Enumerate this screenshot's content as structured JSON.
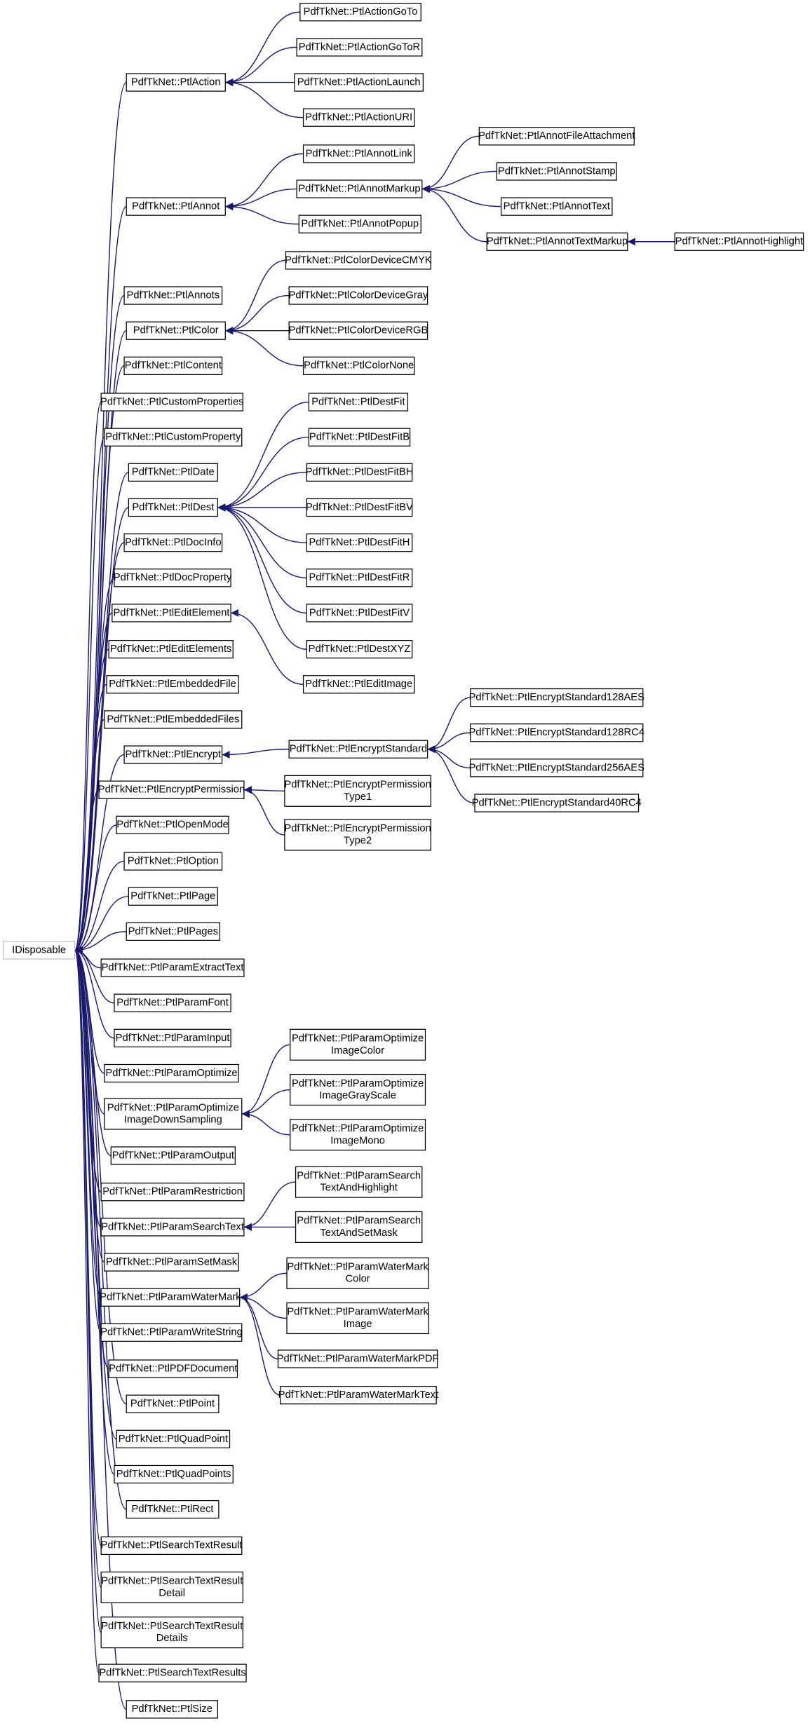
{
  "nodes": [
    {
      "label": [
        "IDisposable"
      ]
    },
    {
      "label": [
        "PdfTkNet::PtlAction"
      ]
    },
    {
      "label": [
        "PdfTkNet::PtlAnnot"
      ]
    },
    {
      "label": [
        "PdfTkNet::PtlAnnots"
      ]
    },
    {
      "label": [
        "PdfTkNet::PtlColor"
      ]
    },
    {
      "label": [
        "PdfTkNet::PtlContent"
      ]
    },
    {
      "label": [
        "PdfTkNet::PtlCustomProperties"
      ]
    },
    {
      "label": [
        "PdfTkNet::PtlCustomProperty"
      ]
    },
    {
      "label": [
        "PdfTkNet::PtlDate"
      ]
    },
    {
      "label": [
        "PdfTkNet::PtlDest"
      ]
    },
    {
      "label": [
        "PdfTkNet::PtlDocInfo"
      ]
    },
    {
      "label": [
        "PdfTkNet::PtlDocProperty"
      ]
    },
    {
      "label": [
        "PdfTkNet::PtlEditElement"
      ]
    },
    {
      "label": [
        "PdfTkNet::PtlEditElements"
      ]
    },
    {
      "label": [
        "PdfTkNet::PtlEmbeddedFile"
      ]
    },
    {
      "label": [
        "PdfTkNet::PtlEmbeddedFiles"
      ]
    },
    {
      "label": [
        "PdfTkNet::PtlEncrypt"
      ]
    },
    {
      "label": [
        "PdfTkNet::PtlEncryptPermission"
      ]
    },
    {
      "label": [
        "PdfTkNet::PtlOpenMode"
      ]
    },
    {
      "label": [
        "PdfTkNet::PtlOption"
      ]
    },
    {
      "label": [
        "PdfTkNet::PtlPage"
      ]
    },
    {
      "label": [
        "PdfTkNet::PtlPages"
      ]
    },
    {
      "label": [
        "PdfTkNet::PtlParamExtractText"
      ]
    },
    {
      "label": [
        "PdfTkNet::PtlParamFont"
      ]
    },
    {
      "label": [
        "PdfTkNet::PtlParamInput"
      ]
    },
    {
      "label": [
        "PdfTkNet::PtlParamOptimize"
      ]
    },
    {
      "label": [
        "PdfTkNet::PtlParamOptimize",
        "ImageDownSampling"
      ]
    },
    {
      "label": [
        "PdfTkNet::PtlParamOutput"
      ]
    },
    {
      "label": [
        "PdfTkNet::PtlParamRestriction"
      ]
    },
    {
      "label": [
        "PdfTkNet::PtlParamSearchText"
      ]
    },
    {
      "label": [
        "PdfTkNet::PtlParamSetMask"
      ]
    },
    {
      "label": [
        "PdfTkNet::PtlParamWaterMark"
      ]
    },
    {
      "label": [
        "PdfTkNet::PtlParamWriteString"
      ]
    },
    {
      "label": [
        "PdfTkNet::PtlPDFDocument"
      ]
    },
    {
      "label": [
        "PdfTkNet::PtlPoint"
      ]
    },
    {
      "label": [
        "PdfTkNet::PtlQuadPoint"
      ]
    },
    {
      "label": [
        "PdfTkNet::PtlQuadPoints"
      ]
    },
    {
      "label": [
        "PdfTkNet::PtlRect"
      ]
    },
    {
      "label": [
        "PdfTkNet::PtlSearchTextResult"
      ]
    },
    {
      "label": [
        "PdfTkNet::PtlSearchTextResult",
        "Detail"
      ]
    },
    {
      "label": [
        "PdfTkNet::PtlSearchTextResult",
        "Details"
      ]
    },
    {
      "label": [
        "PdfTkNet::PtlSearchTextResults"
      ]
    },
    {
      "label": [
        "PdfTkNet::PtlSize"
      ]
    },
    {
      "label": [
        "PdfTkNet::PtlActionGoTo"
      ]
    },
    {
      "label": [
        "PdfTkNet::PtlActionGoToR"
      ]
    },
    {
      "label": [
        "PdfTkNet::PtlActionLaunch"
      ]
    },
    {
      "label": [
        "PdfTkNet::PtlActionURI"
      ]
    },
    {
      "label": [
        "PdfTkNet::PtlAnnotLink"
      ]
    },
    {
      "label": [
        "PdfTkNet::PtlAnnotMarkup"
      ]
    },
    {
      "label": [
        "PdfTkNet::PtlAnnotPopup"
      ]
    },
    {
      "label": [
        "PdfTkNet::PtlColorDeviceCMYK"
      ]
    },
    {
      "label": [
        "PdfTkNet::PtlColorDeviceGray"
      ]
    },
    {
      "label": [
        "PdfTkNet::PtlColorDeviceRGB"
      ]
    },
    {
      "label": [
        "PdfTkNet::PtlColorNone"
      ]
    },
    {
      "label": [
        "PdfTkNet::PtlDestFit"
      ]
    },
    {
      "label": [
        "PdfTkNet::PtlDestFitB"
      ]
    },
    {
      "label": [
        "PdfTkNet::PtlDestFitBH"
      ]
    },
    {
      "label": [
        "PdfTkNet::PtlDestFitBV"
      ]
    },
    {
      "label": [
        "PdfTkNet::PtlDestFitH"
      ]
    },
    {
      "label": [
        "PdfTkNet::PtlDestFitR"
      ]
    },
    {
      "label": [
        "PdfTkNet::PtlDestFitV"
      ]
    },
    {
      "label": [
        "PdfTkNet::PtlDestXYZ"
      ]
    },
    {
      "label": [
        "PdfTkNet::PtlEditImage"
      ]
    },
    {
      "label": [
        "PdfTkNet::PtlEncryptStandard"
      ]
    },
    {
      "label": [
        "PdfTkNet::PtlEncryptPermission",
        "Type1"
      ]
    },
    {
      "label": [
        "PdfTkNet::PtlEncryptPermission",
        "Type2"
      ]
    },
    {
      "label": [
        "PdfTkNet::PtlParamOptimize",
        "ImageColor"
      ]
    },
    {
      "label": [
        "PdfTkNet::PtlParamOptimize",
        "ImageGrayScale"
      ]
    },
    {
      "label": [
        "PdfTkNet::PtlParamOptimize",
        "ImageMono"
      ]
    },
    {
      "label": [
        "PdfTkNet::PtlParamSearch",
        "TextAndHighlight"
      ]
    },
    {
      "label": [
        "PdfTkNet::PtlParamSearch",
        "TextAndSetMask"
      ]
    },
    {
      "label": [
        "PdfTkNet::PtlParamWaterMark",
        "Color"
      ]
    },
    {
      "label": [
        "PdfTkNet::PtlParamWaterMark",
        "Image"
      ]
    },
    {
      "label": [
        "PdfTkNet::PtlParamWaterMarkPDF"
      ]
    },
    {
      "label": [
        "PdfTkNet::PtlParamWaterMarkText"
      ]
    },
    {
      "label": [
        "PdfTkNet::PtlAnnotFileAttachment"
      ]
    },
    {
      "label": [
        "PdfTkNet::PtlAnnotStamp"
      ]
    },
    {
      "label": [
        "PdfTkNet::PtlAnnotText"
      ]
    },
    {
      "label": [
        "PdfTkNet::PtlAnnotTextMarkup"
      ]
    },
    {
      "label": [
        "PdfTkNet::PtlEncryptStandard128AES"
      ]
    },
    {
      "label": [
        "PdfTkNet::PtlEncryptStandard128RC4"
      ]
    },
    {
      "label": [
        "PdfTkNet::PtlEncryptStandard256AES"
      ]
    },
    {
      "label": [
        "PdfTkNet::PtlEncryptStandard40RC4"
      ]
    },
    {
      "label": [
        "PdfTkNet::PtlAnnotHighlight"
      ]
    }
  ]
}
